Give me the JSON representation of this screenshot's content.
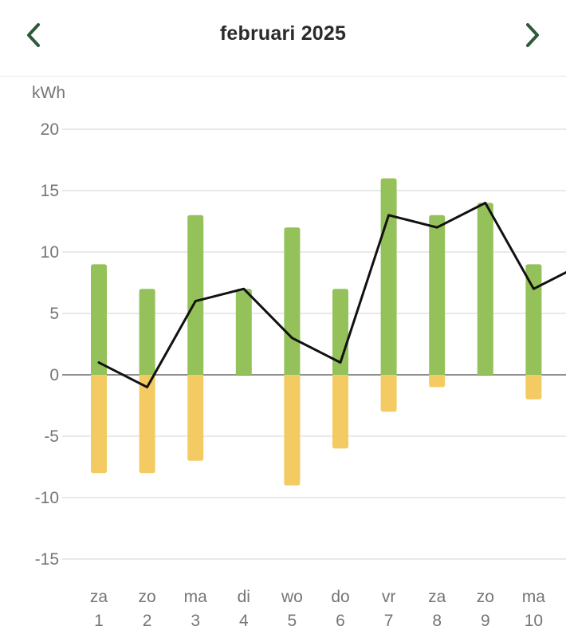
{
  "header": {
    "title": "februari 2025",
    "prev_icon": "chevron-left-icon",
    "next_icon": "chevron-right-icon",
    "accent_color": "#2e5a3c"
  },
  "chart_data": {
    "type": "bar",
    "ylabel": "kWh",
    "ylim": [
      -15,
      20
    ],
    "yticks": [
      20,
      15,
      10,
      5,
      0,
      -5,
      -10,
      -15
    ],
    "grid": true,
    "categories": [
      {
        "day": "za",
        "date": "1"
      },
      {
        "day": "zo",
        "date": "2"
      },
      {
        "day": "ma",
        "date": "3"
      },
      {
        "day": "di",
        "date": "4"
      },
      {
        "day": "wo",
        "date": "5"
      },
      {
        "day": "do",
        "date": "6"
      },
      {
        "day": "vr",
        "date": "7"
      },
      {
        "day": "za",
        "date": "8"
      },
      {
        "day": "zo",
        "date": "9"
      },
      {
        "day": "ma",
        "date": "10"
      }
    ],
    "series": [
      {
        "type": "bar",
        "color": "#94c159",
        "values": [
          9,
          7,
          13,
          7,
          12,
          7,
          16,
          13,
          14,
          9
        ]
      },
      {
        "type": "bar",
        "color": "#f4cb63",
        "values": [
          -8,
          -8,
          -7,
          0,
          -9,
          -6,
          -3,
          -1,
          0,
          -2
        ]
      },
      {
        "type": "line",
        "color": "#111111",
        "values": [
          1,
          -1,
          6,
          7,
          3,
          1,
          13,
          12,
          14,
          7
        ],
        "continues_to": 9
      }
    ]
  }
}
